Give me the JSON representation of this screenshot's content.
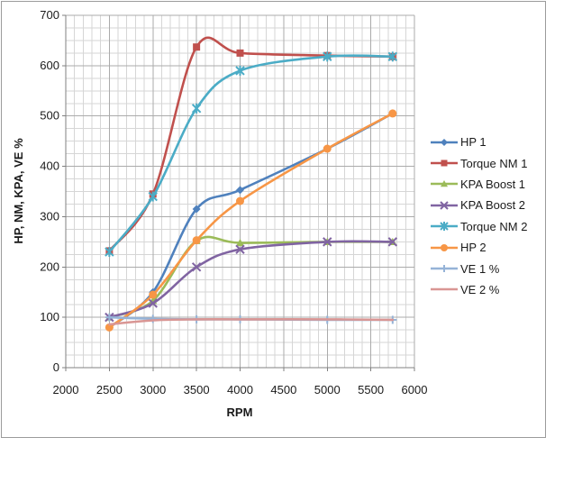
{
  "chart_data": {
    "type": "line",
    "title": "",
    "xlabel": "RPM",
    "ylabel": "HP, NM, KPA, VE %",
    "xlim": [
      2000,
      6000
    ],
    "ylim": [
      0,
      700
    ],
    "x_major_step": 500,
    "x_minor_step": 100,
    "y_major_step": 100,
    "y_minor_step": 25,
    "x_tick_labels": [
      "2000",
      "2500",
      "3000",
      "3500",
      "4000",
      "4500",
      "5000",
      "5500",
      "6000"
    ],
    "y_tick_labels": [
      "0",
      "100",
      "200",
      "300",
      "400",
      "500",
      "600",
      "700"
    ],
    "grid": "major and minor, both axes",
    "legend_position": "right",
    "smooth_lines": true,
    "x": [
      2500,
      3000,
      3500,
      4000,
      5000,
      5750
    ],
    "series": [
      {
        "name": "HP 1",
        "marker": "diamond",
        "color": "#4F81BD",
        "values": [
          80,
          150,
          315,
          353,
          435,
          505
        ]
      },
      {
        "name": "Torque NM 1",
        "marker": "square",
        "color": "#C0504D",
        "values": [
          232,
          345,
          637,
          625,
          620,
          618
        ]
      },
      {
        "name": "KPA Boost 1",
        "marker": "triangle",
        "color": "#9BBB59",
        "values": [
          100,
          133,
          252,
          248,
          250,
          250
        ]
      },
      {
        "name": "KPA Boost 2",
        "marker": "x",
        "color": "#8064A2",
        "values": [
          100,
          128,
          200,
          235,
          250,
          250
        ]
      },
      {
        "name": "Torque NM 2",
        "marker": "star",
        "color": "#4BACC6",
        "values": [
          230,
          340,
          515,
          590,
          618,
          618
        ]
      },
      {
        "name": "HP 2",
        "marker": "circle",
        "color": "#F79646",
        "values": [
          80,
          145,
          253,
          331,
          435,
          505
        ]
      },
      {
        "name": "VE 1 %",
        "marker": "plus",
        "color": "#95B3D7",
        "values": [
          100,
          97,
          96,
          96,
          95,
          95
        ]
      },
      {
        "name": "VE 2 %",
        "marker": "none",
        "color": "#D99694",
        "values": [
          86,
          94,
          96,
          96,
          96,
          95
        ]
      }
    ],
    "colors": {
      "grid_minor": "#d6d6d6",
      "grid_major": "#ababab",
      "axis": "#808080",
      "text": "#1a1a1a",
      "frame_border": "#9b9b9b",
      "background": "#ffffff"
    }
  }
}
